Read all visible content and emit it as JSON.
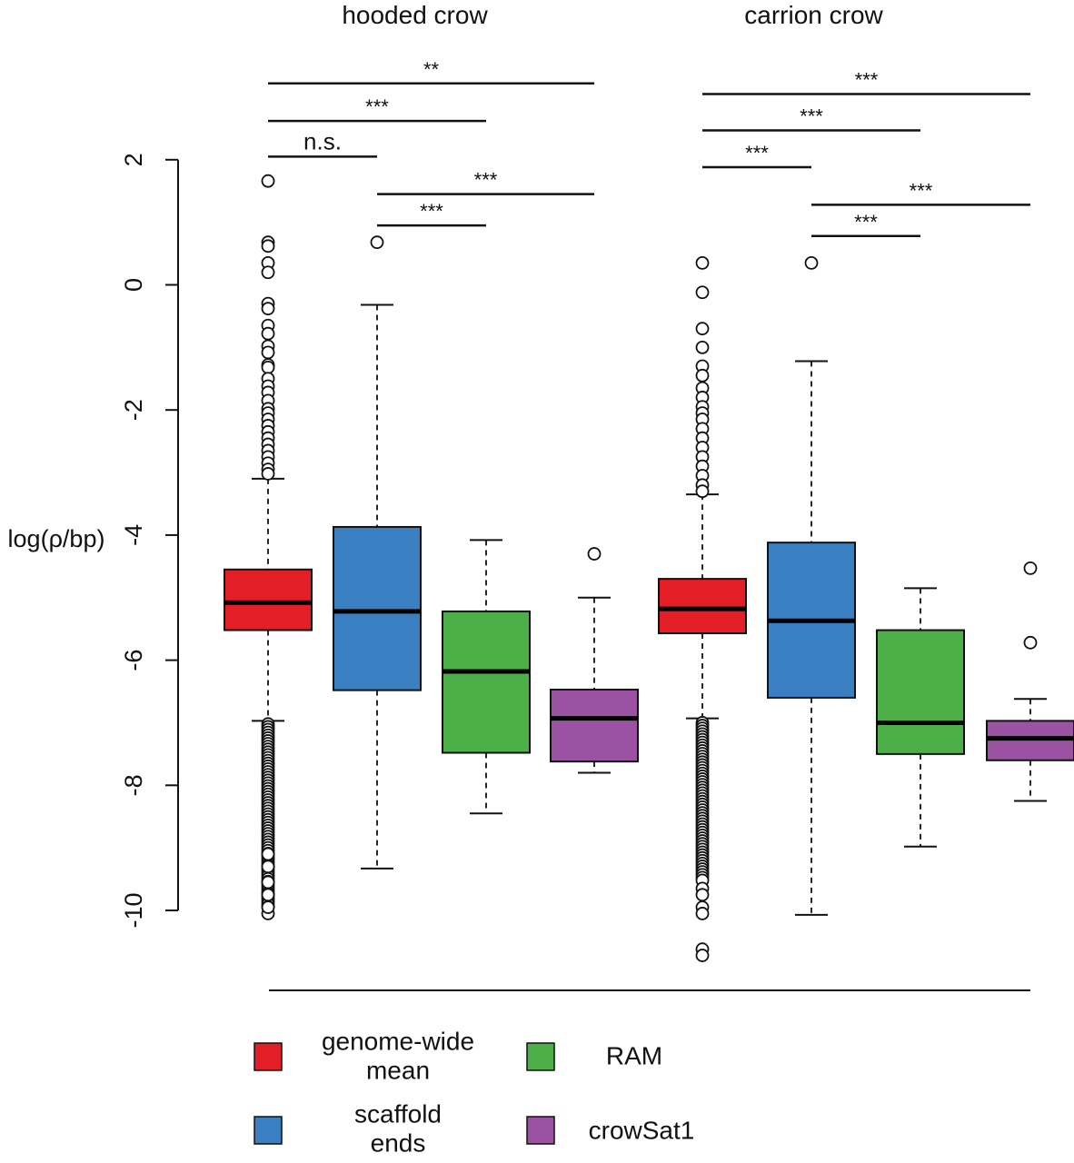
{
  "chart_data": {
    "type": "box",
    "ylabel": "log(ρ/bp)",
    "ylim": [
      -10,
      2
    ],
    "yticks": [
      2,
      0,
      -2,
      -4,
      -6,
      -8,
      -10
    ],
    "groups": [
      {
        "title": "hooded crow",
        "boxes": [
          {
            "series": "genome-wide mean",
            "q1": -5.52,
            "median": -5.08,
            "q3": -4.55,
            "whisker_low": -6.97,
            "whisker_high": -3.1,
            "outliers_high": [
              1.66,
              0.68,
              0.62,
              0.35,
              0.2,
              -0.3,
              -0.38,
              -0.65,
              -0.78,
              -0.98,
              -1.08,
              -1.28,
              -1.32,
              -1.5,
              -1.62,
              -1.72,
              -1.85,
              -1.98,
              -2.05,
              -2.15,
              -2.25,
              -2.35,
              -2.45,
              -2.55,
              -2.65,
              -2.75,
              -2.85,
              -2.95,
              -3.02
            ],
            "outliers_low_range": [
              -9.98,
              -7.02
            ],
            "outliers_low_extra": [
              -10.05,
              -9.95,
              -9.75,
              -9.55,
              -9.3,
              -9.1
            ]
          },
          {
            "series": "scaffold ends",
            "q1": -6.48,
            "median": -5.22,
            "q3": -3.87,
            "whisker_low": -9.33,
            "whisker_high": -0.32,
            "outliers_high": [
              0.68
            ],
            "outliers_low_range": null,
            "outliers_low_extra": []
          },
          {
            "series": "RAM",
            "q1": -7.48,
            "median": -6.18,
            "q3": -5.22,
            "whisker_low": -8.45,
            "whisker_high": -4.08,
            "outliers_high": [],
            "outliers_low_range": null,
            "outliers_low_extra": []
          },
          {
            "series": "crowSat1",
            "q1": -7.62,
            "median": -6.93,
            "q3": -6.47,
            "whisker_low": -7.8,
            "whisker_high": -5.0,
            "outliers_high": [
              -4.3
            ],
            "outliers_low_range": null,
            "outliers_low_extra": []
          }
        ],
        "significance": [
          {
            "from": 0,
            "to": 1,
            "label": "n.s.",
            "y": 2.05
          },
          {
            "from": 0,
            "to": 2,
            "label": "***",
            "y": 2.62
          },
          {
            "from": 0,
            "to": 3,
            "label": "**",
            "y": 3.22
          },
          {
            "from": 1,
            "to": 2,
            "label": "***",
            "y": 0.95
          },
          {
            "from": 1,
            "to": 3,
            "label": "***",
            "y": 1.45
          }
        ]
      },
      {
        "title": "carrion crow",
        "boxes": [
          {
            "series": "genome-wide mean",
            "q1": -5.57,
            "median": -5.18,
            "q3": -4.7,
            "whisker_low": -6.93,
            "whisker_high": -3.35,
            "outliers_high": [
              0.35,
              -0.12,
              -0.7,
              -1.0,
              -1.3,
              -1.45,
              -1.65,
              -1.8,
              -1.95,
              -2.05,
              -2.15,
              -2.3,
              -2.45,
              -2.6,
              -2.75,
              -2.9,
              -3.05,
              -3.2,
              -3.3
            ],
            "outliers_low_range": [
              -9.55,
              -7.0
            ],
            "outliers_low_extra": [
              -9.65,
              -9.75,
              -9.95,
              -10.05,
              -10.62,
              -10.72
            ]
          },
          {
            "series": "scaffold ends",
            "q1": -6.6,
            "median": -5.37,
            "q3": -4.12,
            "whisker_low": -10.07,
            "whisker_high": -1.22,
            "outliers_high": [
              0.35
            ],
            "outliers_low_range": null,
            "outliers_low_extra": []
          },
          {
            "series": "RAM",
            "q1": -7.5,
            "median": -7.0,
            "q3": -5.52,
            "whisker_low": -8.98,
            "whisker_high": -4.85,
            "outliers_high": [],
            "outliers_low_range": null,
            "outliers_low_extra": []
          },
          {
            "series": "crowSat1",
            "q1": -7.6,
            "median": -7.25,
            "q3": -6.97,
            "whisker_low": -8.25,
            "whisker_high": -6.62,
            "outliers_high": [
              -4.53,
              -5.72
            ],
            "outliers_low_range": null,
            "outliers_low_extra": []
          }
        ],
        "significance": [
          {
            "from": 0,
            "to": 1,
            "label": "***",
            "y": 1.88
          },
          {
            "from": 0,
            "to": 2,
            "label": "***",
            "y": 2.47
          },
          {
            "from": 0,
            "to": 3,
            "label": "***",
            "y": 3.05
          },
          {
            "from": 1,
            "to": 2,
            "label": "***",
            "y": 0.78
          },
          {
            "from": 1,
            "to": 3,
            "label": "***",
            "y": 1.28
          }
        ]
      }
    ],
    "legend": {
      "placement": "bottom",
      "items": [
        {
          "label_lines": [
            "genome-wide",
            "mean"
          ],
          "color": "#e31e26"
        },
        {
          "label_lines": [
            "RAM"
          ],
          "color": "#4caf48"
        },
        {
          "label_lines": [
            "scaffold",
            "ends"
          ],
          "color": "#3a7fc1"
        },
        {
          "label_lines": [
            "crowSat1"
          ],
          "color": "#9b52a3"
        }
      ]
    },
    "colors": {
      "genome-wide mean": "#e31e26",
      "scaffold ends": "#3a7fc1",
      "RAM": "#4caf48",
      "crowSat1": "#9b52a3"
    }
  }
}
